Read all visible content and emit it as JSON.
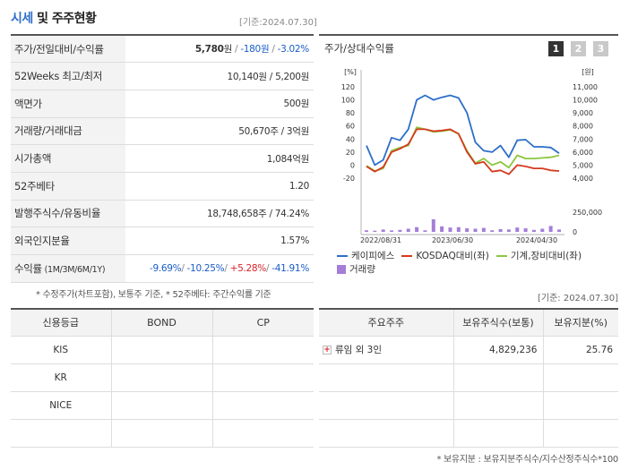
{
  "header": {
    "title_part1": "시세",
    "title_part2": " 및 주주현황",
    "asof": "[기준:2024.07.30]"
  },
  "quote_rows": [
    {
      "label": "주가/전일대비/수익률",
      "v1": "5,780",
      "v1u": "원",
      "sep1": " / ",
      "v2": "-180원",
      "sep2": " / ",
      "v3": "-3.02%"
    },
    {
      "label": "52Weeks 최고/최저",
      "value": "10,140원 / 5,200원"
    },
    {
      "label": "액면가",
      "value": "500원"
    },
    {
      "label": "거래량/거래대금",
      "value": "50,670주 / 3억원"
    },
    {
      "label": "시가총액",
      "value": "1,084억원"
    },
    {
      "label": "52주베타",
      "value": "1.20"
    },
    {
      "label": "발행주식수/유동비율",
      "value": "18,748,658주 / 74.24%"
    },
    {
      "label": "외국인지분율",
      "value": "1.57%"
    },
    {
      "label": "수익률",
      "label_sub": " (1M/3M/6M/1Y)",
      "r1": "-9.69%",
      "r2": "-10.25%",
      "r3": "+5.28%",
      "r4": "-41.91%",
      "sep": "/ "
    }
  ],
  "notes": {
    "note1": "* 수정주가(차트포함), 보통주 기준, * 52주베타: 주간수익률 기준",
    "asof2": "[기준: 2024.07.30]",
    "note2": "* 보유지분 : 보유지분주식수/지수산정주식수*100"
  },
  "chart": {
    "title": "주가/상대수익률",
    "pages": [
      "1",
      "2",
      "3"
    ],
    "active_page": 0,
    "left_unit": "[%]",
    "right_unit": "[원]",
    "left_ticks": [
      "120",
      "100",
      "80",
      "60",
      "40",
      "20",
      "0",
      "-20"
    ],
    "right_ticks": [
      "11,000",
      "10,000",
      "9,000",
      "8,000",
      "7,000",
      "6,000",
      "5,000",
      "4,000"
    ],
    "volume_tick": "250,000",
    "volume_zero": "0",
    "x_labels": [
      "2022/08/31",
      "2023/06/30",
      "2024/04/30"
    ],
    "legend": [
      "케이피에스",
      "KOSDAQ대비(좌)",
      "기계,장비대비(좌)",
      "거래량"
    ],
    "colors": {
      "price": "#2d6ec9",
      "kosdaq": "#d53a1e",
      "machine": "#8cc63f",
      "volume": "#a57ed8"
    }
  },
  "chart_data": {
    "type": "line",
    "series": [
      {
        "name": "케이피에스",
        "values": [
          30,
          0,
          8,
          42,
          38,
          55,
          100,
          107,
          100,
          104,
          107,
          103,
          80,
          35,
          22,
          20,
          30,
          12,
          38,
          39,
          28,
          28,
          27,
          18
        ]
      },
      {
        "name": "KOSDAQ대비(좌)",
        "values": [
          -2,
          -10,
          -3,
          20,
          25,
          32,
          55,
          55,
          52,
          53,
          55,
          48,
          20,
          2,
          5,
          -10,
          -8,
          -14,
          0,
          -2,
          -5,
          -5,
          -8,
          -9
        ]
      },
      {
        "name": "기계,장비대비(좌)",
        "values": [
          -1,
          -9,
          -5,
          22,
          27,
          30,
          58,
          55,
          51,
          52,
          54,
          48,
          22,
          3,
          10,
          0,
          5,
          -4,
          15,
          10,
          10,
          11,
          12,
          15
        ]
      }
    ],
    "volume": [
      20000,
      15000,
      30000,
      18000,
      25000,
      40000,
      60000,
      20000,
      160000,
      70000,
      55000,
      60000,
      45000,
      40000,
      50000,
      20000,
      35000,
      30000,
      55000,
      45000,
      25000,
      40000,
      75000,
      30000
    ],
    "ylim_left": [
      -20,
      120
    ],
    "ylim_right": [
      4000,
      11000
    ],
    "volume_max": 250000
  },
  "credit": {
    "headers": [
      "신용등급",
      "BOND",
      "CP"
    ],
    "rows": [
      "KIS",
      "KR",
      "NICE",
      ""
    ]
  },
  "major": {
    "headers": [
      "주요주주",
      "보유주식수(보통)",
      "보유지분(%)"
    ],
    "rows": [
      {
        "name": "류임 외 3인",
        "shares": "4,829,236",
        "pct": "25.76"
      }
    ]
  }
}
